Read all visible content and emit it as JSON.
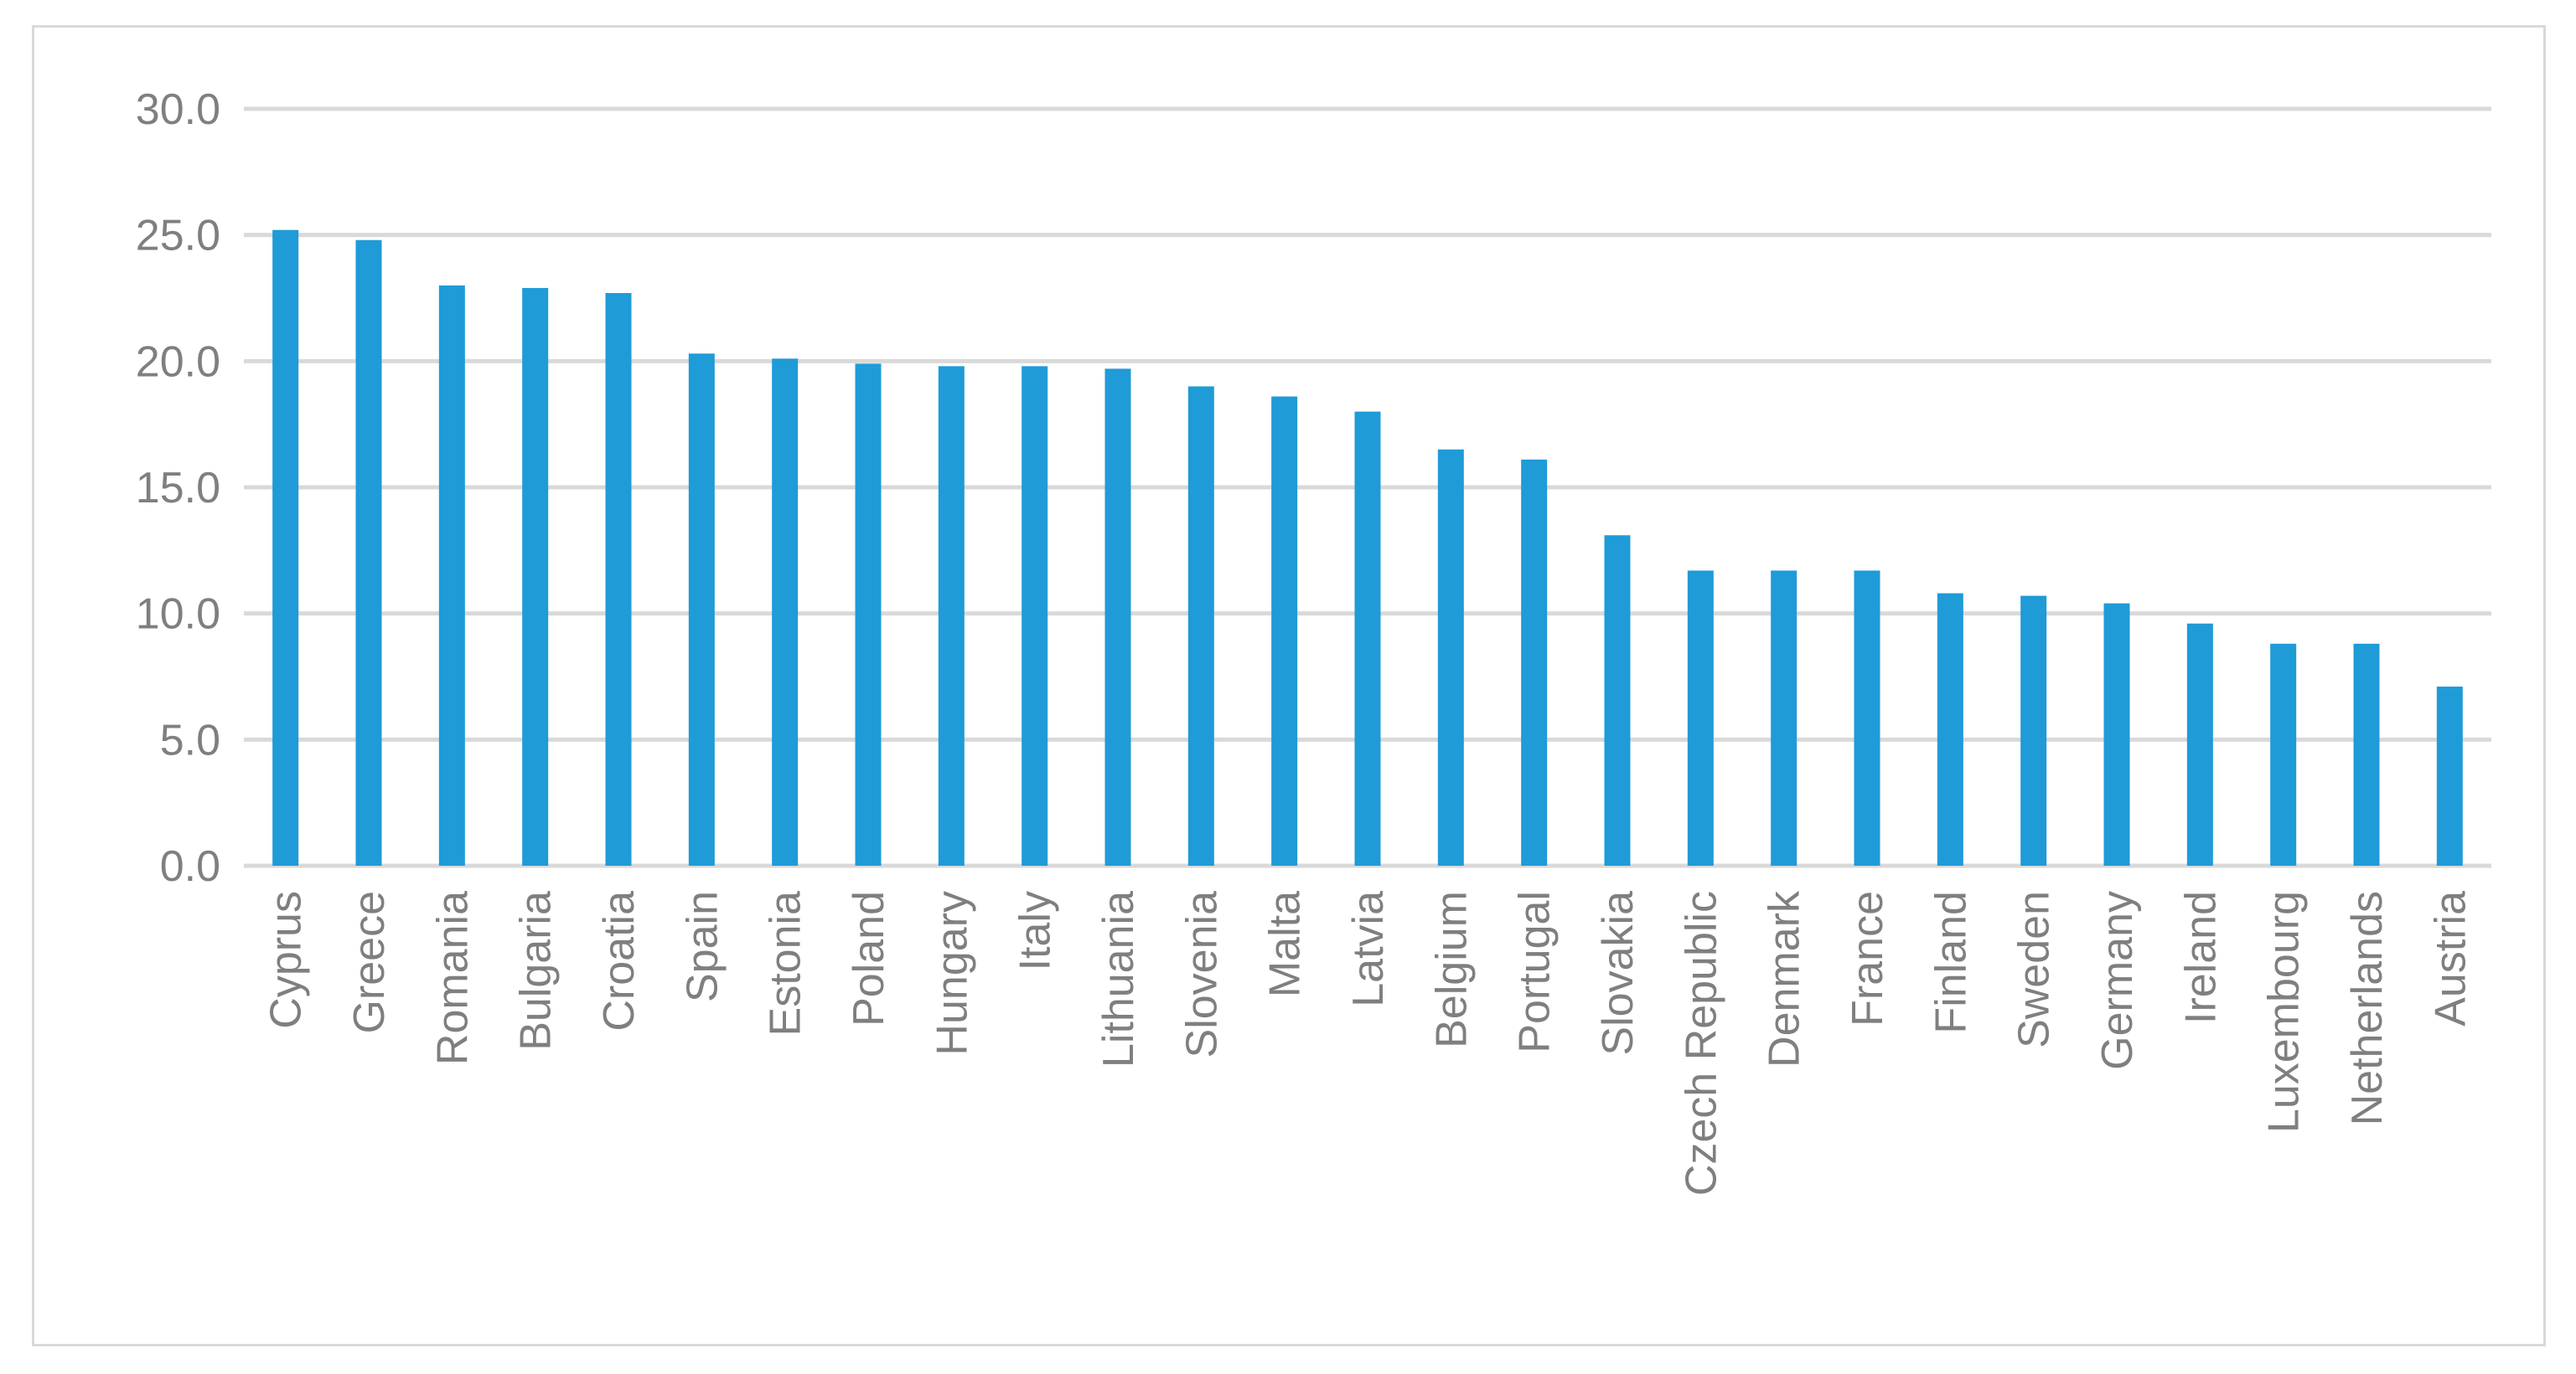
{
  "chart_data": {
    "type": "bar",
    "categories": [
      "Cyprus",
      "Greece",
      "Romania",
      "Bulgaria",
      "Croatia",
      "Spain",
      "Estonia",
      "Poland",
      "Hungary",
      "Italy",
      "Lithuania",
      "Slovenia",
      "Malta",
      "Latvia",
      "Belgium",
      "Portugal",
      "Slovakia",
      "Czech Republic",
      "Denmark",
      "France",
      "Finland",
      "Sweden",
      "Germany",
      "Ireland",
      "Luxembourg",
      "Netherlands",
      "Austria"
    ],
    "values": [
      25.2,
      24.8,
      23.0,
      22.9,
      22.7,
      20.3,
      20.1,
      19.9,
      19.8,
      19.8,
      19.7,
      19.0,
      18.6,
      18.0,
      16.5,
      16.1,
      13.1,
      11.7,
      11.7,
      11.7,
      10.8,
      10.7,
      10.4,
      9.6,
      8.8,
      8.8,
      7.1
    ],
    "ylim": [
      0,
      30
    ],
    "yticks": [
      "0.0",
      "5.0",
      "10.0",
      "15.0",
      "20.0",
      "25.0",
      "30.0"
    ],
    "title": "",
    "xlabel": "",
    "ylabel": "",
    "grid": true,
    "legend": "none",
    "colors": {
      "bar": "#1f9bd7",
      "grid": "#d9d9d9",
      "text": "#7f7f7f"
    }
  }
}
